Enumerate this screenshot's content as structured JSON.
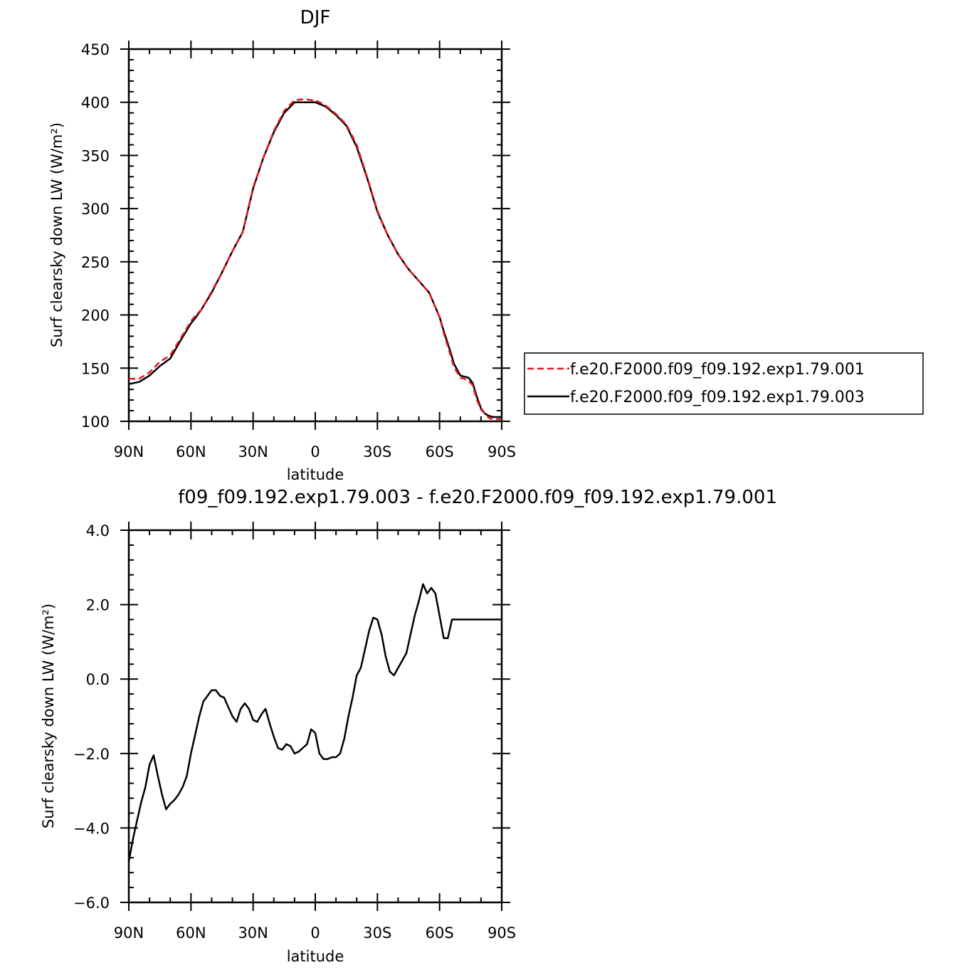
{
  "chart_data": [
    {
      "type": "line",
      "title": "DJF",
      "xlabel": "latitude",
      "ylabel": "Surf clearsky down LW (W/m²)",
      "xlim": [
        90,
        -90
      ],
      "ylim": [
        100,
        450
      ],
      "xticks": [
        90,
        60,
        30,
        0,
        -30,
        -60,
        -90
      ],
      "xtick_labels": [
        "90N",
        "60N",
        "30N",
        "0",
        "30S",
        "60S",
        "90S"
      ],
      "yticks": [
        100,
        150,
        200,
        250,
        300,
        350,
        400,
        450
      ],
      "ytick_labels": [
        "100",
        "150",
        "200",
        "250",
        "300",
        "350",
        "400",
        "450"
      ],
      "legend_position": "right",
      "series": [
        {
          "name": "f.e20.F2000.f09_f09.192.exp1.79.001",
          "color": "#e8141a",
          "style": "dashed",
          "x": [
            90,
            85,
            80,
            75,
            70,
            65,
            60,
            58,
            55,
            50,
            45,
            40,
            35,
            30,
            25,
            20,
            15,
            10,
            5,
            2,
            0,
            -5,
            -10,
            -15,
            -20,
            -25,
            -30,
            -35,
            -40,
            -45,
            -50,
            -55,
            -60,
            -62,
            -65,
            -67,
            -70,
            -72,
            -74,
            -76,
            -78,
            -80,
            -82,
            -84,
            -86,
            -88,
            -90
          ],
          "values": [
            140,
            140,
            146,
            156,
            162,
            178,
            194,
            199,
            205,
            222,
            240,
            260,
            278,
            320,
            348,
            373,
            392,
            402,
            403,
            402,
            402,
            397,
            389,
            379,
            360,
            330,
            298,
            275,
            257,
            243,
            232,
            221,
            198,
            183,
            164,
            151,
            141,
            140,
            138,
            134,
            120,
            111,
            107,
            103,
            102,
            102,
            102
          ]
        },
        {
          "name": "f.e20.F2000.f09_f09.192.exp1.79.003",
          "color": "#000000",
          "style": "solid",
          "x": [
            90,
            85,
            80,
            75,
            70,
            65,
            60,
            58,
            55,
            50,
            45,
            40,
            35,
            30,
            25,
            20,
            15,
            10,
            5,
            2,
            0,
            -5,
            -10,
            -15,
            -20,
            -25,
            -30,
            -35,
            -40,
            -45,
            -50,
            -55,
            -60,
            -62,
            -65,
            -67,
            -70,
            -72,
            -74,
            -76,
            -78,
            -80,
            -82,
            -84,
            -86,
            -88,
            -90
          ],
          "values": [
            135,
            137,
            143,
            152,
            159,
            176,
            192,
            197,
            205,
            221,
            240,
            260,
            278,
            319,
            348,
            372,
            390,
            400,
            400,
            400,
            400,
            396,
            388,
            378,
            358,
            329,
            297,
            275,
            257,
            243,
            232,
            221,
            198,
            185,
            167,
            154,
            143,
            142,
            141,
            136,
            123,
            112,
            107,
            105,
            104,
            104,
            104
          ]
        }
      ]
    },
    {
      "type": "line",
      "title": "f09_f09.192.exp1.79.003 - f.e20.F2000.f09_f09.192.exp1.79.001",
      "xlabel": "latitude",
      "ylabel": "Surf clearsky down LW (W/m²)",
      "xlim": [
        90,
        -90
      ],
      "ylim": [
        -6.0,
        4.0
      ],
      "xticks": [
        90,
        60,
        30,
        0,
        -30,
        -60,
        -90
      ],
      "xtick_labels": [
        "90N",
        "60N",
        "30N",
        "0",
        "30S",
        "60S",
        "90S"
      ],
      "yticks": [
        -6.0,
        -4.0,
        -2.0,
        0.0,
        2.0,
        4.0
      ],
      "ytick_labels": [
        "−6.0",
        "−4.0",
        "−2.0",
        "0.0",
        "2.0",
        "4.0"
      ],
      "series": [
        {
          "name": "",
          "color": "#000000",
          "style": "solid",
          "x": [
            90,
            88,
            86,
            84,
            82,
            80,
            78,
            76,
            74,
            72,
            70,
            68,
            66,
            64,
            62,
            60,
            58,
            56,
            54,
            52,
            50,
            48,
            46,
            44,
            42,
            40,
            38,
            36,
            34,
            32,
            30,
            28,
            26,
            24,
            22,
            20,
            18,
            16,
            14,
            12,
            10,
            8,
            6,
            4,
            2,
            0,
            -2,
            -4,
            -6,
            -8,
            -10,
            -12,
            -14,
            -16,
            -18,
            -20,
            -22,
            -24,
            -26,
            -28,
            -30,
            -32,
            -34,
            -36,
            -38,
            -40,
            -42,
            -44,
            -46,
            -48,
            -50,
            -52,
            -54,
            -56,
            -58,
            -60,
            -62,
            -64,
            -66,
            -68,
            -70,
            -72,
            -74,
            -76,
            -78,
            -80,
            -82,
            -84,
            -86,
            -88,
            -90
          ],
          "values": [
            -4.9,
            -4.3,
            -3.8,
            -3.3,
            -2.9,
            -2.3,
            -2.05,
            -2.6,
            -3.1,
            -3.5,
            -3.35,
            -3.25,
            -3.1,
            -2.9,
            -2.6,
            -2.0,
            -1.5,
            -1.0,
            -0.6,
            -0.45,
            -0.3,
            -0.3,
            -0.45,
            -0.5,
            -0.75,
            -1.0,
            -1.15,
            -0.8,
            -0.65,
            -0.8,
            -1.1,
            -1.15,
            -0.95,
            -0.8,
            -1.2,
            -1.55,
            -1.85,
            -1.9,
            -1.75,
            -1.8,
            -2.0,
            -1.95,
            -1.85,
            -1.75,
            -1.35,
            -1.45,
            -2.0,
            -2.15,
            -2.15,
            -2.1,
            -2.1,
            -2.0,
            -1.6,
            -1.0,
            -0.5,
            0.1,
            0.3,
            0.8,
            1.3,
            1.65,
            1.6,
            1.2,
            0.6,
            0.2,
            0.1,
            0.3,
            0.5,
            0.7,
            1.2,
            1.7,
            2.1,
            2.55,
            2.3,
            2.45,
            2.3,
            1.7,
            1.1,
            1.1,
            1.6,
            1.6,
            1.6,
            1.6,
            1.6,
            1.6,
            1.6,
            1.6,
            1.6,
            1.6,
            1.6,
            1.6,
            1.6
          ]
        }
      ]
    }
  ]
}
